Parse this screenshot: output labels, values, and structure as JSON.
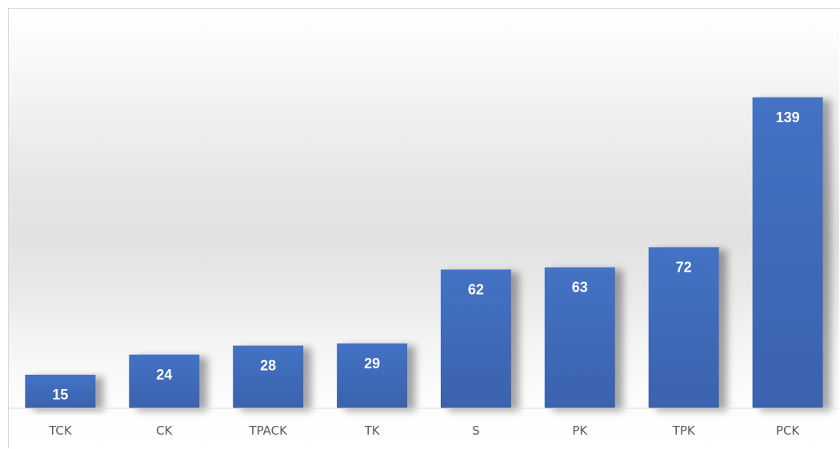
{
  "chart_data": {
    "type": "bar",
    "categories": [
      "TCK",
      "CK",
      "TPACK",
      "TK",
      "S",
      "PK",
      "TPK",
      "PCK"
    ],
    "values": [
      15,
      24,
      28,
      29,
      62,
      63,
      72,
      139
    ],
    "title": "",
    "xlabel": "",
    "ylabel": "",
    "ylim": [
      0,
      150
    ],
    "grid": false,
    "legend": "none",
    "data_labels": true,
    "colors": {
      "bar_top": "#4472c4",
      "bar_bottom": "#3a62ad",
      "label": "#ffffff",
      "tick": "#595959",
      "axis": "#d9d9d9"
    }
  }
}
